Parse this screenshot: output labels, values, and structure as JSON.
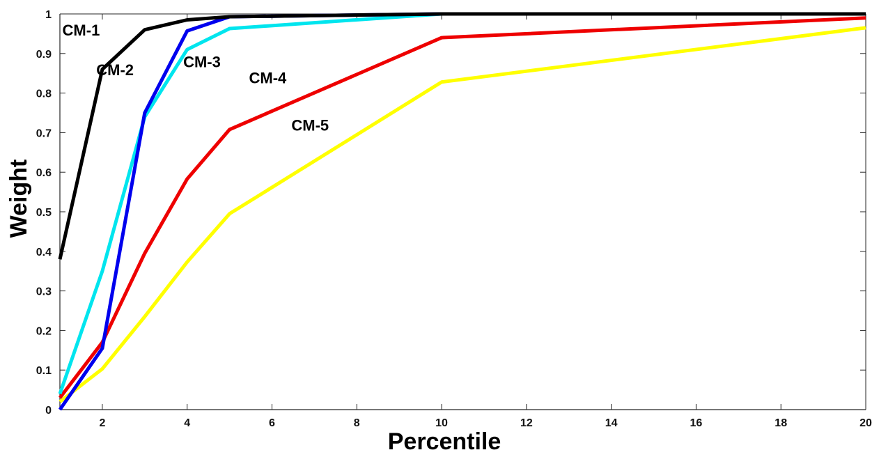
{
  "chart_data": {
    "type": "line",
    "title": "",
    "xlabel": "Percentile",
    "ylabel": "Weight",
    "xlim": [
      1,
      20
    ],
    "ylim": [
      0,
      1
    ],
    "xticks": [
      2,
      4,
      6,
      8,
      10,
      12,
      14,
      16,
      18,
      20
    ],
    "yticks": [
      0,
      0.1,
      0.2,
      0.3,
      0.4,
      0.5,
      0.6,
      0.7,
      0.8,
      0.9,
      1
    ],
    "grid": false,
    "series": [
      {
        "name": "CM-1",
        "color": "#000000",
        "x": [
          1,
          2,
          3,
          4,
          5,
          10,
          20
        ],
        "y": [
          0.38,
          0.86,
          0.96,
          0.985,
          0.993,
          1.0,
          1.0
        ]
      },
      {
        "name": "CM-2",
        "color": "#0000ee",
        "x": [
          1,
          2,
          3,
          4,
          5,
          10,
          20
        ],
        "y": [
          0.0,
          0.155,
          0.75,
          0.957,
          0.993,
          1.0,
          1.0
        ]
      },
      {
        "name": "CM-3",
        "color": "#00e5ee",
        "x": [
          1,
          2,
          3,
          4,
          5,
          10,
          20
        ],
        "y": [
          0.04,
          0.35,
          0.74,
          0.91,
          0.963,
          1.0,
          1.0
        ]
      },
      {
        "name": "CM-4",
        "color": "#ee0000",
        "x": [
          1,
          2,
          3,
          4,
          5,
          10,
          20
        ],
        "y": [
          0.03,
          0.17,
          0.395,
          0.583,
          0.708,
          0.94,
          0.99
        ]
      },
      {
        "name": "CM-5",
        "color": "#ffff00",
        "x": [
          1,
          2,
          3,
          4,
          5,
          10,
          20
        ],
        "y": [
          0.02,
          0.103,
          0.235,
          0.373,
          0.495,
          0.828,
          0.965
        ]
      }
    ],
    "annotations": [
      {
        "text": "CM-1",
        "x": 1.5,
        "y": 0.945
      },
      {
        "text": "CM-2",
        "x": 2.3,
        "y": 0.845
      },
      {
        "text": "CM-3",
        "x": 4.35,
        "y": 0.865
      },
      {
        "text": "CM-4",
        "x": 5.9,
        "y": 0.825
      },
      {
        "text": "CM-5",
        "x": 6.9,
        "y": 0.705
      }
    ]
  }
}
